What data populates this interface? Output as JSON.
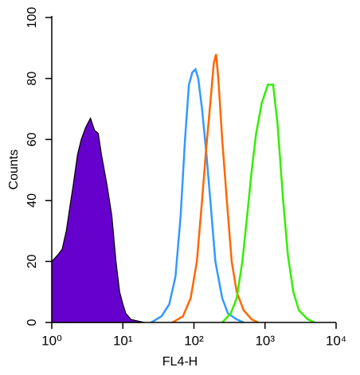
{
  "chart_data": {
    "type": "line",
    "xlabel": "FL4-H",
    "ylabel": "Counts",
    "xscale": "log",
    "xlim": [
      1,
      10000
    ],
    "xticks": [
      {
        "value": 1,
        "label": "10⁰"
      },
      {
        "value": 10,
        "label": "10¹"
      },
      {
        "value": 100,
        "label": "10²"
      },
      {
        "value": 1000,
        "label": "10³"
      },
      {
        "value": 10000,
        "label": "10⁴"
      }
    ],
    "ylim": [
      0,
      100
    ],
    "yticks": [
      0,
      20,
      40,
      60,
      80,
      100
    ],
    "series": [
      {
        "color": "#6600cc",
        "fill": true,
        "x": [
          1,
          1.2,
          1.4,
          1.6,
          1.8,
          2,
          2.3,
          2.6,
          3,
          3.5,
          4,
          4.5,
          5,
          6,
          7,
          8,
          9,
          10,
          11,
          13,
          16,
          20
        ],
        "values": [
          20,
          22,
          24,
          30,
          38,
          45,
          55,
          60,
          64,
          67,
          63,
          62,
          55,
          45,
          35,
          20,
          10,
          6,
          3,
          1,
          0.5,
          0
        ]
      },
      {
        "color": "#3399ff",
        "fill": false,
        "x": [
          25,
          35,
          45,
          55,
          65,
          75,
          85,
          95,
          105,
          115,
          130,
          150,
          170,
          200,
          250,
          300,
          400,
          500
        ],
        "values": [
          0,
          2,
          6,
          15,
          35,
          60,
          78,
          82,
          83,
          80,
          70,
          55,
          40,
          20,
          8,
          3,
          1,
          0
        ]
      },
      {
        "color": "#ff6600",
        "fill": false,
        "x": [
          50,
          70,
          90,
          110,
          130,
          150,
          170,
          190,
          205,
          220,
          250,
          290,
          340,
          400,
          500,
          650,
          800
        ],
        "values": [
          0,
          2,
          8,
          20,
          40,
          58,
          72,
          85,
          88,
          80,
          60,
          40,
          20,
          10,
          4,
          1,
          0
        ]
      },
      {
        "color": "#33ee00",
        "fill": false,
        "x": [
          250,
          330,
          400,
          480,
          560,
          650,
          750,
          900,
          1100,
          1300,
          1500,
          1800,
          2100,
          2500,
          3000,
          4000,
          5000
        ],
        "values": [
          0,
          3,
          8,
          20,
          35,
          50,
          62,
          72,
          78,
          78,
          65,
          40,
          22,
          10,
          4,
          1,
          0
        ]
      }
    ]
  }
}
